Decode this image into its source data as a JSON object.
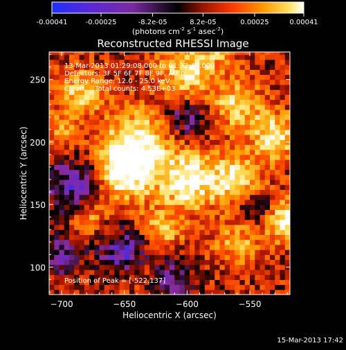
{
  "colorbar": {
    "ticks": [
      {
        "value": -0.00041,
        "label": "-0.00041"
      },
      {
        "value": -0.00025,
        "label": "-0.00025"
      },
      {
        "value": -8.2e-05,
        "label": "-8.2e-05"
      },
      {
        "value": 8.2e-05,
        "label": "8.2e-05"
      },
      {
        "value": 0.00025,
        "label": "0.00025"
      },
      {
        "value": 0.00041,
        "label": "0.00041"
      }
    ],
    "range": [
      -0.00041,
      0.00041
    ],
    "units_label": "(photons cm",
    "units_exp1": "-2",
    "units_mid": " s",
    "units_exp2": "-1",
    "units_end": " asec",
    "units_exp3": "-2",
    "units_close": ")"
  },
  "chart_data": {
    "type": "heatmap",
    "title": "Reconstructed RHESSI Image",
    "xlabel": "Heliocentric X (arcsec)",
    "ylabel": "Heliocentric Y (arcsec)",
    "xlim": [
      -710,
      -518
    ],
    "ylim": [
      78,
      272
    ],
    "x_ticks": [
      -700,
      -650,
      -600,
      -550
    ],
    "x_tick_labels": [
      "−700",
      "−650",
      "−600",
      "−550"
    ],
    "y_ticks": [
      100,
      150,
      200,
      250
    ],
    "y_tick_labels": [
      "100",
      "150",
      "200",
      "250"
    ],
    "grid": false,
    "colormap": [
      "#1e2fff",
      "#6a28c8",
      "#8a2c9a",
      "#000000",
      "#b01800",
      "#ff4a00",
      "#ff9a00",
      "#ffe060",
      "#ffffff"
    ],
    "annotations": [
      "13-Mar-2013 01:29:08.000 to 01:32:40.000",
      "Detectors: 3F 5F 6F 7F 8F 9F, Att 0",
      "Energy Range: 12.0 - 25.0 keV",
      "Clean     Total counts: 4.53E+03"
    ],
    "peak_label": "Position of Peak = [-522,137]",
    "peak": [
      -522,
      137
    ]
  },
  "footer_timestamp": "15-Mar-2013 17:42"
}
